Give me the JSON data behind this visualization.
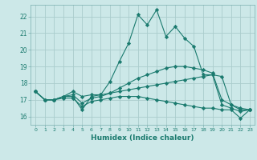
{
  "title": "",
  "xlabel": "Humidex (Indice chaleur)",
  "ylabel": "",
  "bg_color": "#cce8e8",
  "grid_color": "#aacccc",
  "line_color": "#1a7a6e",
  "xlim": [
    -0.5,
    23.5
  ],
  "ylim": [
    15.5,
    22.7
  ],
  "xticks": [
    0,
    1,
    2,
    3,
    4,
    5,
    6,
    7,
    8,
    9,
    10,
    11,
    12,
    13,
    14,
    15,
    16,
    17,
    18,
    19,
    20,
    21,
    22,
    23
  ],
  "yticks": [
    16,
    17,
    18,
    19,
    20,
    21,
    22
  ],
  "line1_x": [
    0,
    1,
    2,
    3,
    4,
    5,
    6,
    7,
    8,
    9,
    10,
    11,
    12,
    13,
    14,
    15,
    16,
    17,
    18,
    19,
    20,
    21,
    22,
    23
  ],
  "line1_y": [
    17.5,
    17.0,
    17.0,
    17.2,
    17.2,
    16.4,
    17.2,
    17.3,
    18.1,
    19.3,
    20.4,
    22.1,
    21.5,
    22.4,
    20.8,
    21.4,
    20.7,
    20.2,
    18.5,
    18.5,
    16.7,
    16.5,
    16.3,
    16.4
  ],
  "line2_x": [
    0,
    1,
    2,
    3,
    4,
    5,
    6,
    7,
    8,
    9,
    10,
    11,
    12,
    13,
    14,
    15,
    16,
    17,
    18,
    19,
    20,
    21,
    22,
    23
  ],
  "line2_y": [
    17.5,
    17.0,
    17.0,
    17.2,
    17.5,
    17.2,
    17.3,
    17.3,
    17.4,
    17.5,
    17.6,
    17.7,
    17.8,
    17.9,
    18.0,
    18.1,
    18.2,
    18.3,
    18.4,
    18.5,
    18.4,
    16.7,
    16.5,
    16.4
  ],
  "line3_x": [
    0,
    1,
    2,
    3,
    4,
    5,
    6,
    7,
    8,
    9,
    10,
    11,
    12,
    13,
    14,
    15,
    16,
    17,
    18,
    19,
    20,
    21,
    22,
    23
  ],
  "line3_y": [
    17.5,
    17.0,
    17.0,
    17.1,
    17.1,
    16.6,
    16.9,
    17.0,
    17.1,
    17.2,
    17.2,
    17.2,
    17.1,
    17.0,
    16.9,
    16.8,
    16.7,
    16.6,
    16.5,
    16.5,
    16.4,
    16.4,
    15.9,
    16.4
  ],
  "line4_x": [
    0,
    1,
    2,
    3,
    4,
    5,
    6,
    7,
    8,
    9,
    10,
    11,
    12,
    13,
    14,
    15,
    16,
    17,
    18,
    19,
    20,
    21,
    22,
    23
  ],
  "line4_y": [
    17.5,
    17.0,
    17.0,
    17.2,
    17.3,
    16.8,
    17.1,
    17.2,
    17.4,
    17.7,
    18.0,
    18.3,
    18.5,
    18.7,
    18.9,
    19.0,
    19.0,
    18.9,
    18.8,
    18.6,
    17.0,
    16.7,
    16.4,
    16.4
  ]
}
